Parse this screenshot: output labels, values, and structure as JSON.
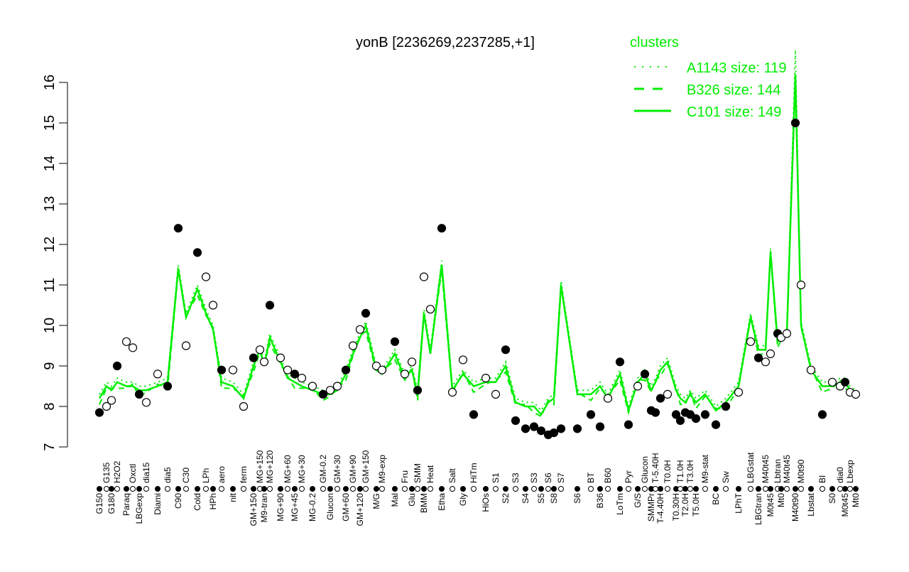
{
  "chart_data": {
    "type": "line",
    "title": "yonB [2236269,2237285,+1]",
    "xlabel": "",
    "ylabel": "",
    "ylim": [
      7,
      16
    ],
    "yticks": [
      7,
      8,
      9,
      10,
      11,
      12,
      13,
      14,
      15,
      16
    ],
    "grid": false,
    "legend": {
      "title": "clusters",
      "placement": "top-right",
      "color": "#00ee00",
      "entries": [
        {
          "label": "A1143 size: 119",
          "style": "dotted"
        },
        {
          "label": "B326 size: 144",
          "style": "dashed"
        },
        {
          "label": "C101 size: 149",
          "style": "solid"
        }
      ]
    },
    "point_color": "#000000",
    "line_color": "#00ee00",
    "categories": [
      "G150",
      "G135",
      "G180",
      "H2O2",
      "Paraq",
      "Oxctl",
      "LBGexp",
      "dia15",
      "Diami",
      "dia5",
      "C90",
      "C30",
      "Cold",
      "LPh",
      "HPh",
      "aero",
      "nit",
      "ferm",
      "GM+150",
      "MG+150",
      "M9-tran",
      "MG+120",
      "MG+90",
      "MG+60",
      "MG+45",
      "MG+30",
      "MG-0.2",
      "GM-0.2",
      "Glucon",
      "GM+30",
      "GM+60",
      "GM+90",
      "GM+120",
      "GM+150",
      "M/G",
      "M9-exp",
      "Mal",
      "Fru",
      "Glu",
      "SMM",
      "BMM",
      "Heat",
      "Etha",
      "Salt",
      "Gly",
      "HiTm",
      "HiOs",
      "S1",
      "S2",
      "S3",
      "S4",
      "S3",
      "S5",
      "S6",
      "S8",
      "S7",
      "S6",
      "BT",
      "B36",
      "B60",
      "LoTm",
      "Pyr",
      "G/S",
      "Glucon",
      "SMMPr",
      "T-5.40H",
      "T-4.40H",
      "T0.0H",
      "T0.30H",
      "T1.0H",
      "T2.0H",
      "T3.0H",
      "T5.0H",
      "M9-stat",
      "BC",
      "Sw",
      "LPhT",
      "LBGstat",
      "LBGtran",
      "M40t45",
      "M0t45",
      "Lbtran",
      "Mt0",
      "M40t45",
      "M40t90",
      "M0t90",
      "Lbstat",
      "BI",
      "S0",
      "dia0",
      "M0t45",
      "Lbexp",
      "Mt0"
    ],
    "series": [
      {
        "name": "",
        "kind": "points",
        "values": [
          7.85,
          8.0,
          8.15,
          9.0,
          9.6,
          9.45,
          8.3,
          8.1,
          8.8,
          8.5,
          12.4,
          9.5,
          11.8,
          11.2,
          10.5,
          8.9,
          8.9,
          8.0,
          9.2,
          9.4,
          9.1,
          10.5,
          9.2,
          8.9,
          8.8,
          8.7,
          8.5,
          8.3,
          8.4,
          8.5,
          8.9,
          9.5,
          9.9,
          10.3,
          9.0,
          8.9,
          9.6,
          8.8,
          9.1,
          8.4,
          11.2,
          10.4,
          12.4,
          8.35,
          9.15,
          7.8,
          8.7,
          8.3,
          9.4,
          7.65,
          7.45,
          7.5,
          7.4,
          7.3,
          7.35,
          7.45,
          7.45,
          7.8,
          7.5,
          8.2,
          9.1,
          7.55,
          8.5,
          8.8,
          7.9,
          7.85,
          8.2,
          8.3,
          7.8,
          7.65,
          7.85,
          7.8,
          7.7,
          7.8,
          7.55,
          8.0,
          8.35,
          9.6,
          9.2,
          9.1,
          9.3,
          9.8,
          9.7,
          9.8,
          15.0,
          11.0,
          8.9,
          7.8,
          8.6,
          8.5,
          8.6,
          8.35,
          8.3
        ]
      },
      {
        "name": "C101 size: 149",
        "kind": "line",
        "values": [
          8.2,
          8.5,
          8.4,
          8.6,
          8.5,
          8.5,
          8.4,
          8.4,
          8.5,
          8.6,
          11.4,
          10.2,
          10.9,
          10.3,
          9.9,
          8.6,
          8.5,
          8.2,
          9.0,
          9.4,
          9.0,
          9.7,
          9.1,
          8.7,
          8.6,
          8.5,
          8.4,
          8.3,
          8.3,
          8.4,
          8.8,
          9.3,
          9.7,
          10.0,
          8.9,
          8.8,
          9.3,
          8.7,
          8.9,
          8.3,
          10.3,
          9.3,
          11.5,
          8.4,
          8.8,
          8.5,
          8.6,
          8.6,
          9.0,
          8.1,
          8.0,
          8.0,
          7.8,
          8.1,
          8.2,
          11.0,
          8.3,
          8.3,
          8.5,
          8.2,
          8.8,
          7.9,
          8.6,
          8.8,
          8.4,
          8.6,
          8.9,
          9.1,
          8.4,
          8.2,
          8.1,
          8.3,
          8.1,
          8.3,
          7.9,
          8.1,
          8.5,
          10.2,
          9.4,
          9.4,
          11.8,
          9.6,
          9.7,
          9.8,
          16.2,
          10.0,
          8.9,
          8.5,
          8.5,
          8.6,
          8.6,
          8.4,
          8.3
        ]
      }
    ]
  }
}
